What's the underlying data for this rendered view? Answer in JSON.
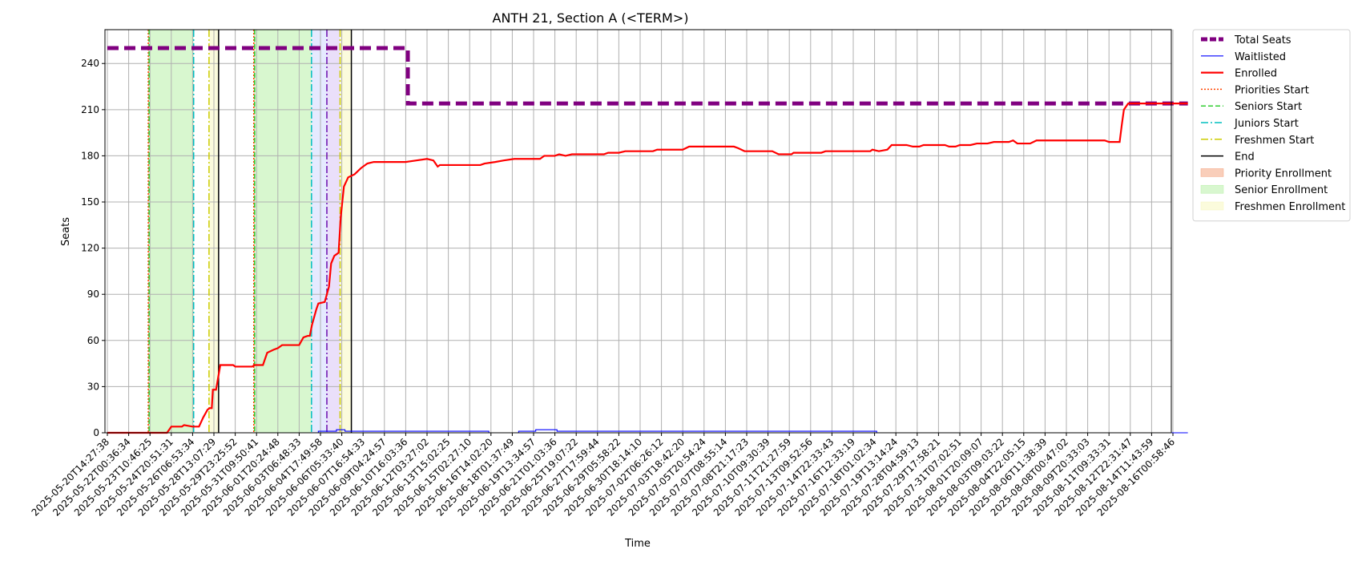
{
  "chart_data": {
    "type": "line",
    "title": "ANTH 21, Section A (<TERM>)",
    "xlabel": "Time",
    "ylabel": "Seats",
    "ylim": [
      0,
      262
    ],
    "yticks": [
      0,
      30,
      60,
      90,
      120,
      150,
      180,
      210,
      240
    ],
    "grid": true,
    "legend_placement": "outside-top-right",
    "x_tick_labels": [
      "2025-05-20T14:27:38",
      "2025-05-22T00:36:34",
      "2025-05-23T10:46:25",
      "2025-05-24T20:51:31",
      "2025-05-26T06:53:34",
      "2025-05-28T13:07:29",
      "2025-05-29T23:25:52",
      "2025-05-31T09:50:41",
      "2025-06-01T20:24:48",
      "2025-06-03T06:48:33",
      "2025-06-04T17:49:58",
      "2025-06-06T05:33:40",
      "2025-06-07T16:54:33",
      "2025-06-09T04:24:57",
      "2025-06-10T16:03:36",
      "2025-06-12T03:27:02",
      "2025-06-13T15:02:25",
      "2025-06-15T02:27:10",
      "2025-06-16T14:02:20",
      "2025-06-18T01:37:49",
      "2025-06-19T13:34:57",
      "2025-06-21T01:03:36",
      "2025-06-25T19:07:22",
      "2025-06-27T17:59:44",
      "2025-06-29T05:58:22",
      "2025-06-30T18:14:10",
      "2025-07-02T06:26:12",
      "2025-07-03T18:42:20",
      "2025-07-05T20:54:24",
      "2025-07-07T08:55:14",
      "2025-07-08T21:17:23",
      "2025-07-10T09:30:39",
      "2025-07-11T21:27:59",
      "2025-07-13T09:52:56",
      "2025-07-14T22:33:43",
      "2025-07-16T12:33:19",
      "2025-07-18T01:02:34",
      "2025-07-19T13:14:24",
      "2025-07-28T04:59:13",
      "2025-07-29T17:58:21",
      "2025-07-31T07:02:51",
      "2025-08-01T20:09:07",
      "2025-08-03T09:03:22",
      "2025-08-04T22:05:15",
      "2025-08-06T11:38:39",
      "2025-08-08T00:47:02",
      "2025-08-09T20:33:03",
      "2025-08-11T09:33:31",
      "2025-08-12T22:31:47",
      "2025-08-14T11:43:59",
      "2025-08-16T00:58:46"
    ],
    "series": [
      {
        "name": "Total Seats",
        "color": "#800080",
        "style": "dashed-thick",
        "points": [
          [
            0,
            250
          ],
          [
            14.1,
            250
          ],
          [
            14.1,
            214
          ],
          [
            50.7,
            214
          ]
        ]
      },
      {
        "name": "Waitlisted",
        "color": "#0000ff",
        "style": "solid-thin",
        "points": [
          [
            0,
            0
          ],
          [
            9.9,
            0
          ],
          [
            9.9,
            1
          ],
          [
            10.75,
            1
          ],
          [
            10.75,
            2
          ],
          [
            11.15,
            2
          ],
          [
            11.15,
            1
          ],
          [
            17.9,
            1
          ],
          [
            17.9,
            0
          ],
          [
            19.3,
            0
          ],
          [
            19.3,
            1
          ],
          [
            20.1,
            1
          ],
          [
            20.1,
            2
          ],
          [
            21.1,
            2
          ],
          [
            21.1,
            1
          ],
          [
            36.1,
            1
          ],
          [
            36.1,
            0
          ],
          [
            50.7,
            0
          ]
        ]
      },
      {
        "name": "Enrolled",
        "color": "#ff0000",
        "style": "solid-thick",
        "points": [
          [
            0,
            0
          ],
          [
            2.8,
            0
          ],
          [
            3.0,
            4
          ],
          [
            3.5,
            4
          ],
          [
            3.6,
            5
          ],
          [
            4.0,
            4
          ],
          [
            4.3,
            4
          ],
          [
            4.5,
            10
          ],
          [
            4.7,
            15
          ],
          [
            4.8,
            16
          ],
          [
            4.9,
            16
          ],
          [
            4.95,
            28
          ],
          [
            5.1,
            28
          ],
          [
            5.15,
            32
          ],
          [
            5.3,
            44
          ],
          [
            5.9,
            44
          ],
          [
            6.0,
            43
          ],
          [
            6.8,
            43
          ],
          [
            6.9,
            44
          ],
          [
            7.3,
            44
          ],
          [
            7.5,
            52
          ],
          [
            7.8,
            54
          ],
          [
            8.0,
            55
          ],
          [
            8.2,
            57
          ],
          [
            9.0,
            57
          ],
          [
            9.2,
            62
          ],
          [
            9.4,
            63
          ],
          [
            9.5,
            63
          ],
          [
            9.6,
            70
          ],
          [
            9.8,
            80
          ],
          [
            9.9,
            84
          ],
          [
            10.2,
            85
          ],
          [
            10.4,
            95
          ],
          [
            10.5,
            110
          ],
          [
            10.65,
            115
          ],
          [
            10.85,
            117
          ],
          [
            10.95,
            140
          ],
          [
            11.1,
            160
          ],
          [
            11.3,
            166
          ],
          [
            11.6,
            168
          ],
          [
            11.9,
            172
          ],
          [
            12.2,
            175
          ],
          [
            12.5,
            176
          ],
          [
            14.0,
            176
          ],
          [
            14.5,
            177
          ],
          [
            15.0,
            178
          ],
          [
            15.3,
            177
          ],
          [
            15.5,
            173
          ],
          [
            15.6,
            174
          ],
          [
            17.5,
            174
          ],
          [
            17.7,
            175
          ],
          [
            18.2,
            176
          ],
          [
            18.6,
            177
          ],
          [
            19.1,
            178
          ],
          [
            20.3,
            178
          ],
          [
            20.5,
            180
          ],
          [
            21.0,
            180
          ],
          [
            21.2,
            181
          ],
          [
            21.5,
            180
          ],
          [
            21.8,
            181
          ],
          [
            23.3,
            181
          ],
          [
            23.5,
            182
          ],
          [
            24.0,
            182
          ],
          [
            24.3,
            183
          ],
          [
            25.6,
            183
          ],
          [
            25.8,
            184
          ],
          [
            27.0,
            184
          ],
          [
            27.3,
            186
          ],
          [
            29.4,
            186
          ],
          [
            29.6,
            185
          ],
          [
            29.9,
            183
          ],
          [
            31.2,
            183
          ],
          [
            31.5,
            181
          ],
          [
            32.1,
            181
          ],
          [
            32.2,
            182
          ],
          [
            33.5,
            182
          ],
          [
            33.7,
            183
          ],
          [
            35.8,
            183
          ],
          [
            35.9,
            184
          ],
          [
            36.2,
            183
          ],
          [
            36.6,
            184
          ],
          [
            36.8,
            187
          ],
          [
            37.5,
            187
          ],
          [
            37.8,
            186
          ],
          [
            38.1,
            186
          ],
          [
            38.3,
            187
          ],
          [
            39.3,
            187
          ],
          [
            39.5,
            186
          ],
          [
            39.8,
            186
          ],
          [
            40.0,
            187
          ],
          [
            40.5,
            187
          ],
          [
            40.8,
            188
          ],
          [
            41.3,
            188
          ],
          [
            41.6,
            189
          ],
          [
            42.3,
            189
          ],
          [
            42.5,
            190
          ],
          [
            42.7,
            188
          ],
          [
            43.3,
            188
          ],
          [
            43.6,
            190
          ],
          [
            46.3,
            190
          ],
          [
            46.8,
            190
          ],
          [
            47.0,
            189
          ],
          [
            47.5,
            189
          ],
          [
            47.6,
            200
          ],
          [
            47.7,
            210
          ],
          [
            47.9,
            214
          ],
          [
            50.7,
            214
          ]
        ]
      }
    ],
    "vlines": [
      {
        "series": "Priorities Start",
        "color": "#ff4500",
        "style": "dotted",
        "x": [
          1.92,
          6.87
        ]
      },
      {
        "series": "Seniors Start",
        "color": "#32cd32",
        "style": "dashed",
        "x": [
          1.96,
          6.91
        ]
      },
      {
        "series": "Juniors Start",
        "color": "#00bfbf",
        "style": "dashdot",
        "x": [
          4.05,
          9.58
        ]
      },
      {
        "series": "Freshmen Start",
        "color": "#cccc00",
        "style": "dashdot",
        "x": [
          4.77,
          10.92
        ]
      },
      {
        "series": "Sophomores Start",
        "color": "#6a0dad",
        "style": "dashdot",
        "x": [
          10.3
        ]
      },
      {
        "series": "End",
        "color": "#000000",
        "style": "solid",
        "x": [
          5.22,
          11.45
        ]
      }
    ],
    "spans": [
      {
        "series": "Priority Enrollment",
        "color": "#f4a582",
        "ranges": [
          [
            1.92,
            1.96
          ],
          [
            6.87,
            6.91
          ]
        ]
      },
      {
        "series": "Senior Enrollment",
        "color": "#b8f0a8",
        "ranges": [
          [
            1.96,
            4.05
          ],
          [
            6.91,
            9.58
          ]
        ]
      },
      {
        "series": "Junior Enrollment",
        "color": "#d0d8ff",
        "ranges": [
          [
            9.58,
            10.3
          ]
        ]
      },
      {
        "series": "Sophomore Enrollment",
        "color": "#d9c4f5",
        "ranges": [
          [
            10.3,
            10.92
          ]
        ]
      },
      {
        "series": "Freshmen Enrollment",
        "color": "#f7f7c0",
        "ranges": [
          [
            4.77,
            5.22
          ],
          [
            10.92,
            11.45
          ]
        ]
      }
    ],
    "legend": [
      {
        "label": "Total Seats",
        "kind": "line",
        "color": "#800080",
        "style": "dashed-thick"
      },
      {
        "label": "Waitlisted",
        "kind": "line",
        "color": "#0000ff",
        "style": "solid-thin"
      },
      {
        "label": "Enrolled",
        "kind": "line",
        "color": "#ff0000",
        "style": "solid-thick"
      },
      {
        "label": "Priorities Start",
        "kind": "line",
        "color": "#ff4500",
        "style": "dotted"
      },
      {
        "label": "Seniors Start",
        "kind": "line",
        "color": "#32cd32",
        "style": "dashed"
      },
      {
        "label": "Juniors Start",
        "kind": "line",
        "color": "#00bfbf",
        "style": "dashdot"
      },
      {
        "label": "Freshmen Start",
        "kind": "line",
        "color": "#cccc00",
        "style": "dashdot"
      },
      {
        "label": "End",
        "kind": "line",
        "color": "#000000",
        "style": "solid"
      },
      {
        "label": "Priority Enrollment",
        "kind": "patch",
        "color": "#f4a582"
      },
      {
        "label": "Senior Enrollment",
        "kind": "patch",
        "color": "#b8f0a8"
      },
      {
        "label": "Freshmen Enrollment",
        "kind": "patch",
        "color": "#f7f7c0"
      }
    ]
  }
}
